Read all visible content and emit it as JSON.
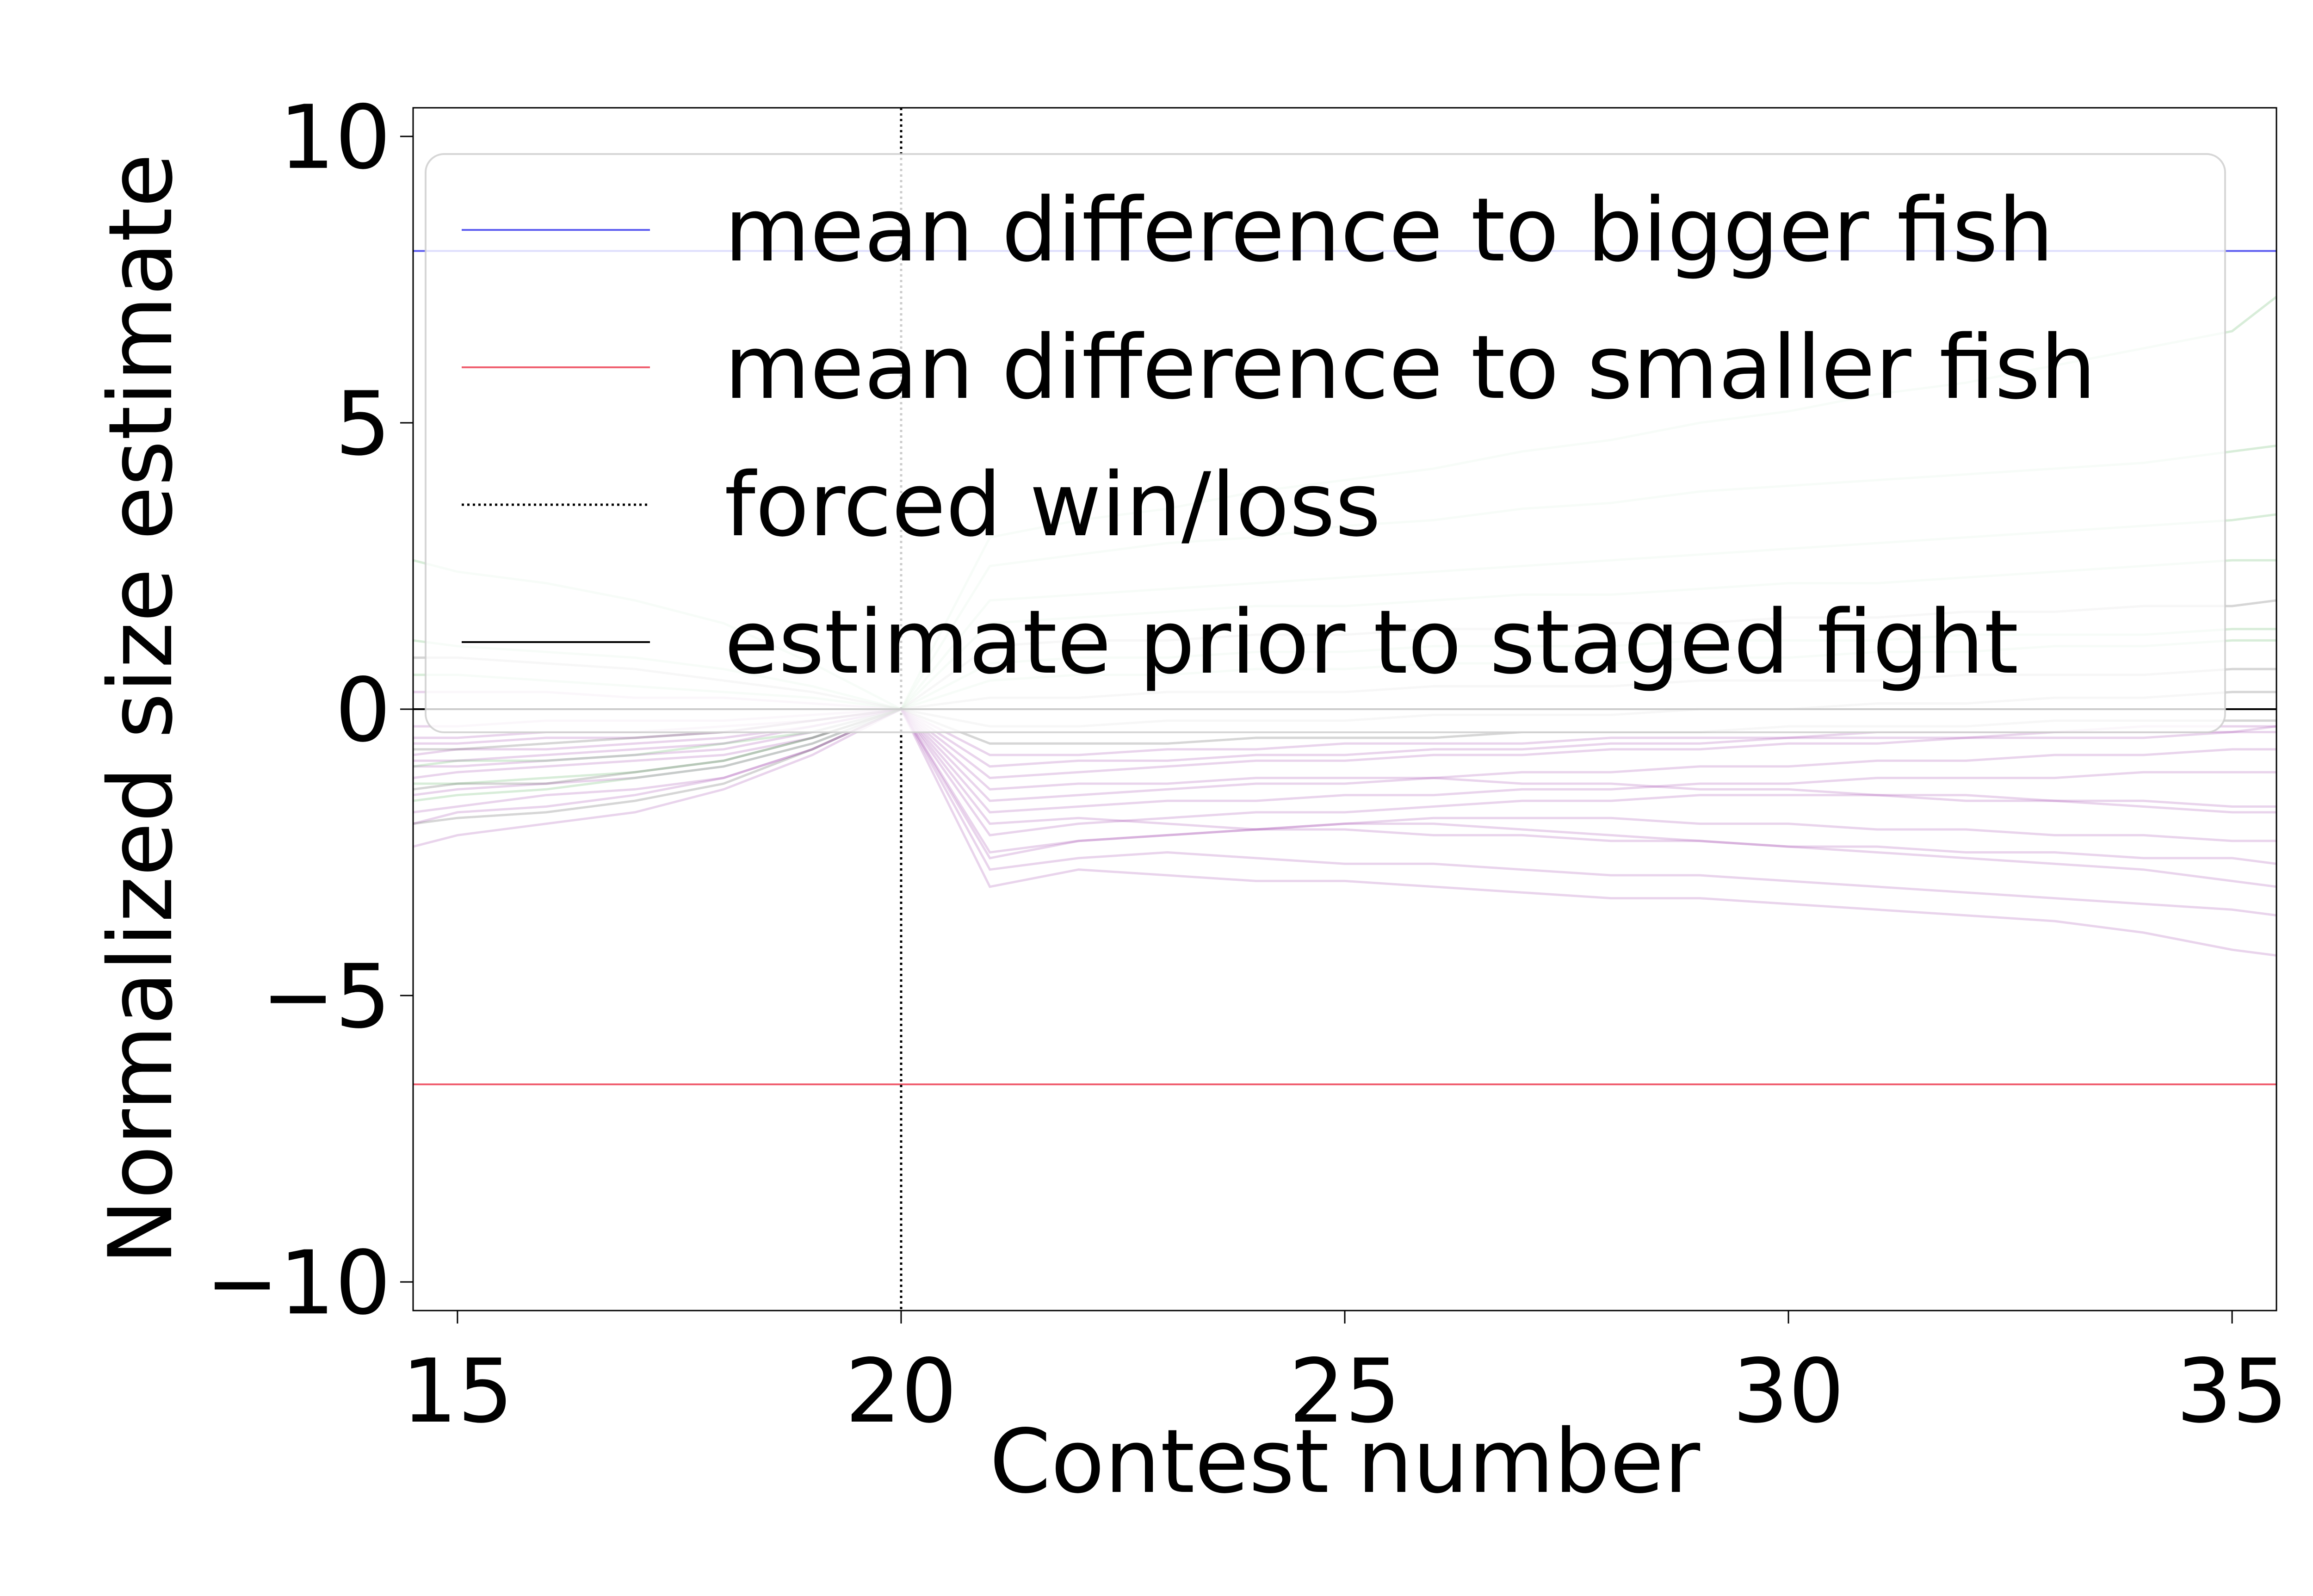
{
  "chart_data": {
    "type": "line",
    "title": "",
    "xlabel": "Contest number",
    "ylabel": "Normalized size estimate",
    "xlim": [
      14.5,
      35.5
    ],
    "ylim": [
      -10.5,
      10.5
    ],
    "xticks": [
      15,
      20,
      25,
      30,
      35
    ],
    "xtick_labels": [
      "15",
      "20",
      "25",
      "30",
      "35"
    ],
    "yticks": [
      10,
      5,
      0,
      -5,
      -10
    ],
    "ytick_labels": [
      "10",
      "5",
      "0",
      "−5",
      "−10"
    ],
    "grid": false,
    "legend_position": "top-right",
    "legend": [
      {
        "label": "mean difference to bigger fish",
        "color": "#5b5bf0",
        "style": "solid"
      },
      {
        "label": "mean difference to smaller fish",
        "color": "#f06070",
        "style": "dotted-none"
      },
      {
        "label": "forced win/loss",
        "color": "#000000",
        "style": "dotted"
      },
      {
        "label": "estimate prior to staged fight",
        "color": "#000000",
        "style": "solid"
      }
    ],
    "reference_lines": {
      "bigger_fish_mean": 8.0,
      "smaller_fish_mean": -6.55,
      "forced_contest_x": 20,
      "prior_estimate_y": 0.0
    },
    "colors": {
      "bigger": "#5b5bf0",
      "smaller": "#f06070",
      "forced": "#000000",
      "prior": "#000000",
      "traj_loss": "#9b3aa8",
      "traj_win": "#4caf50",
      "traj_neutral": "#444444"
    },
    "trajectory_x": [
      14.5,
      15,
      16,
      17,
      18,
      19,
      20,
      21,
      22,
      23,
      24,
      25,
      26,
      27,
      28,
      29,
      30,
      31,
      32,
      33,
      34,
      35,
      35.5
    ],
    "trajectories": [
      {
        "group": "loss",
        "values": [
          -1.2,
          -1.1,
          -1.0,
          -0.9,
          -0.8,
          -0.5,
          0,
          -1.6,
          -1.5,
          -1.4,
          -1.3,
          -1.3,
          -1.2,
          -1.1,
          -1.1,
          -1.0,
          -1.0,
          -0.9,
          -0.9,
          -0.8,
          -0.8,
          -0.7,
          -0.7
        ]
      },
      {
        "group": "loss",
        "values": [
          -0.8,
          -0.7,
          -0.7,
          -0.6,
          -0.5,
          -0.3,
          0,
          -2.6,
          -2.3,
          -2.2,
          -2.1,
          -2.0,
          -2.0,
          -2.1,
          -2.2,
          -2.3,
          -2.4,
          -2.5,
          -2.6,
          -2.7,
          -2.8,
          -3.0,
          -3.1
        ]
      },
      {
        "group": "loss",
        "values": [
          -1.5,
          -1.4,
          -1.3,
          -1.2,
          -1.0,
          -0.6,
          0,
          -1.2,
          -1.1,
          -1.0,
          -0.9,
          -0.9,
          -0.8,
          -0.8,
          -0.7,
          -0.7,
          -0.6,
          -0.6,
          -0.5,
          -0.5,
          -0.5,
          -0.4,
          -0.4
        ]
      },
      {
        "group": "loss",
        "values": [
          -0.5,
          -0.5,
          -0.4,
          -0.4,
          -0.3,
          -0.2,
          0,
          -3.1,
          -2.8,
          -2.9,
          -3.0,
          -3.0,
          -3.1,
          -3.2,
          -3.3,
          -3.3,
          -3.4,
          -3.5,
          -3.6,
          -3.7,
          -3.9,
          -4.2,
          -4.3
        ]
      },
      {
        "group": "loss",
        "values": [
          -2.0,
          -1.8,
          -1.7,
          -1.5,
          -1.2,
          -0.7,
          0,
          -2.2,
          -2.0,
          -1.9,
          -1.8,
          -1.8,
          -1.7,
          -1.6,
          -1.6,
          -1.5,
          -1.5,
          -1.5,
          -1.6,
          -1.6,
          -1.7,
          -1.8,
          -1.8
        ]
      },
      {
        "group": "loss",
        "values": [
          -0.3,
          -0.3,
          -0.2,
          -0.2,
          -0.2,
          -0.1,
          0,
          -1.0,
          -0.9,
          -0.9,
          -0.8,
          -0.8,
          -0.7,
          -0.7,
          -0.6,
          -0.6,
          -0.5,
          -0.5,
          -0.5,
          -0.4,
          -0.4,
          -0.4,
          -0.3
        ]
      },
      {
        "group": "loss",
        "values": [
          -1.0,
          -1.0,
          -0.9,
          -0.8,
          -0.7,
          -0.4,
          0,
          -2.8,
          -2.6,
          -2.5,
          -2.6,
          -2.7,
          -2.7,
          -2.8,
          -2.9,
          -2.9,
          -3.0,
          -3.1,
          -3.2,
          -3.3,
          -3.4,
          -3.5,
          -3.6
        ]
      },
      {
        "group": "loss",
        "values": [
          -1.8,
          -1.7,
          -1.5,
          -1.4,
          -1.2,
          -0.7,
          0,
          -1.8,
          -1.7,
          -1.6,
          -1.6,
          -1.5,
          -1.5,
          -1.4,
          -1.4,
          -1.3,
          -1.3,
          -1.2,
          -1.2,
          -1.2,
          -1.1,
          -1.1,
          -1.1
        ]
      },
      {
        "group": "loss",
        "values": [
          0.3,
          0.3,
          0.3,
          0.2,
          0.2,
          0.1,
          0,
          -2.0,
          -1.9,
          -2.0,
          -2.1,
          -2.1,
          -2.2,
          -2.2,
          -2.3,
          -2.3,
          -2.4,
          -2.4,
          -2.5,
          -2.5,
          -2.6,
          -2.6,
          -2.7
        ]
      },
      {
        "group": "loss",
        "values": [
          -0.9,
          -0.9,
          -0.8,
          -0.7,
          -0.6,
          -0.3,
          0,
          -0.8,
          -0.8,
          -0.7,
          -0.7,
          -0.6,
          -0.6,
          -0.6,
          -0.5,
          -0.5,
          -0.5,
          -0.4,
          -0.4,
          -0.4,
          -0.3,
          -0.3,
          -0.3
        ]
      },
      {
        "group": "loss",
        "values": [
          -2.4,
          -2.2,
          -2.0,
          -1.8,
          -1.4,
          -0.8,
          0,
          -2.5,
          -2.3,
          -2.2,
          -2.1,
          -2.0,
          -1.9,
          -1.9,
          -1.9,
          -2.0,
          -2.0,
          -2.1,
          -2.1,
          -2.2,
          -2.2,
          -2.3,
          -2.3
        ]
      },
      {
        "group": "loss",
        "values": [
          -0.6,
          -0.6,
          -0.5,
          -0.5,
          -0.4,
          -0.2,
          0,
          -1.4,
          -1.3,
          -1.3,
          -1.2,
          -1.2,
          -1.2,
          -1.3,
          -1.3,
          -1.4,
          -1.4,
          -1.5,
          -1.5,
          -1.6,
          -1.6,
          -1.7,
          -1.7
        ]
      },
      {
        "group": "win",
        "values": [
          -1.6,
          -1.5,
          -1.4,
          -1.2,
          -1.0,
          -0.6,
          0,
          1.5,
          1.6,
          1.7,
          1.8,
          1.8,
          1.9,
          2.0,
          2.0,
          2.1,
          2.2,
          2.2,
          2.3,
          2.4,
          2.5,
          2.6,
          2.6
        ]
      },
      {
        "group": "win",
        "values": [
          0.6,
          0.6,
          0.5,
          0.4,
          0.3,
          0.2,
          0,
          2.5,
          2.7,
          2.9,
          3.0,
          3.2,
          3.3,
          3.5,
          3.6,
          3.8,
          3.9,
          4.0,
          4.1,
          4.2,
          4.3,
          4.5,
          4.6
        ]
      },
      {
        "group": "win",
        "values": [
          -1.0,
          -0.9,
          -0.9,
          -0.8,
          -0.6,
          -0.4,
          0,
          0.8,
          0.9,
          0.9,
          1.0,
          1.0,
          1.1,
          1.1,
          1.1,
          1.2,
          1.2,
          1.2,
          1.3,
          1.3,
          1.3,
          1.4,
          1.4
        ]
      },
      {
        "group": "win",
        "values": [
          1.2,
          1.1,
          1.0,
          0.9,
          0.7,
          0.4,
          0,
          1.9,
          2.0,
          2.1,
          2.2,
          2.3,
          2.4,
          2.5,
          2.6,
          2.7,
          2.8,
          2.9,
          3.0,
          3.1,
          3.2,
          3.3,
          3.4
        ]
      },
      {
        "group": "win",
        "values": [
          -1.3,
          -1.3,
          -1.2,
          -1.1,
          -0.9,
          -0.5,
          0,
          0.5,
          0.6,
          0.6,
          0.7,
          0.7,
          0.8,
          0.8,
          0.8,
          0.9,
          0.9,
          1.0,
          1.0,
          1.1,
          1.1,
          1.2,
          1.2
        ]
      },
      {
        "group": "win",
        "values": [
          2.6,
          2.4,
          2.2,
          1.9,
          1.5,
          0.8,
          0,
          3.0,
          3.3,
          3.5,
          3.8,
          4.0,
          4.2,
          4.5,
          4.7,
          5.0,
          5.2,
          5.5,
          5.7,
          6.0,
          6.3,
          6.6,
          7.2
        ]
      },
      {
        "group": "neutral",
        "values": [
          -1.4,
          -1.3,
          -1.3,
          -1.1,
          -0.9,
          -0.5,
          0,
          -0.3,
          -0.3,
          -0.2,
          -0.2,
          -0.2,
          -0.1,
          -0.1,
          -0.1,
          0.0,
          0.0,
          0.1,
          0.1,
          0.2,
          0.2,
          0.3,
          0.3
        ]
      },
      {
        "group": "neutral",
        "values": [
          -0.7,
          -0.7,
          -0.6,
          -0.5,
          -0.4,
          -0.2,
          0,
          0.2,
          0.2,
          0.3,
          0.3,
          0.3,
          0.4,
          0.4,
          0.4,
          0.5,
          0.5,
          0.5,
          0.6,
          0.6,
          0.6,
          0.7,
          0.7
        ]
      },
      {
        "group": "neutral",
        "values": [
          -2.0,
          -1.9,
          -1.8,
          -1.6,
          -1.3,
          -0.7,
          0,
          -0.6,
          -0.6,
          -0.6,
          -0.5,
          -0.5,
          -0.5,
          -0.4,
          -0.4,
          -0.4,
          -0.3,
          -0.3,
          -0.3,
          -0.2,
          -0.2,
          -0.2,
          -0.2
        ]
      },
      {
        "group": "neutral",
        "values": [
          0.9,
          0.9,
          0.8,
          0.7,
          0.5,
          0.3,
          0,
          1.1,
          1.2,
          1.2,
          1.3,
          1.3,
          1.4,
          1.4,
          1.5,
          1.5,
          1.6,
          1.6,
          1.7,
          1.7,
          1.8,
          1.8,
          1.9
        ]
      }
    ]
  }
}
